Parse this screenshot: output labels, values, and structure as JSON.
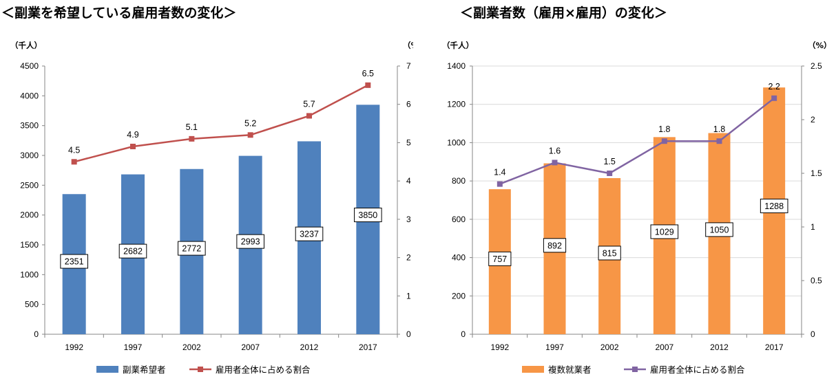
{
  "charts": [
    {
      "title": "＜副業を希望している雇用者数の変化＞",
      "chart_data": {
        "type": "bar",
        "categories": [
          "1992",
          "1997",
          "2002",
          "2007",
          "2012",
          "2017"
        ],
        "y_left_label": "（千人）",
        "y_right_label": "（%）",
        "ylim_left": [
          0,
          4500
        ],
        "yticks_left": [
          0,
          500,
          1000,
          1500,
          2000,
          2500,
          3000,
          3500,
          4000,
          4500
        ],
        "ylim_right": [
          0,
          7
        ],
        "yticks_right": [
          0,
          1,
          2,
          3,
          4,
          5,
          6,
          7
        ],
        "series": [
          {
            "name": "副業希望者",
            "kind": "bar",
            "axis": "left",
            "color": "#4f81bd",
            "values": [
              2351,
              2682,
              2772,
              2993,
              3237,
              3850
            ]
          },
          {
            "name": "雇用者全体に占める割合",
            "kind": "line",
            "axis": "right",
            "color": "#c0504d",
            "values": [
              4.5,
              4.9,
              5.1,
              5.2,
              5.7,
              6.5
            ]
          }
        ],
        "legend_position": "bottom",
        "grid": false
      }
    },
    {
      "title": "＜副業者数（雇用×雇用）の変化＞",
      "chart_data": {
        "type": "bar",
        "categories": [
          "1992",
          "1997",
          "2002",
          "2007",
          "2012",
          "2017"
        ],
        "y_left_label": "（千人）",
        "y_right_label": "（%）",
        "ylim_left": [
          0,
          1400
        ],
        "yticks_left": [
          0,
          200,
          400,
          600,
          800,
          1000,
          1200,
          1400
        ],
        "ylim_right": [
          0,
          2.5
        ],
        "yticks_right": [
          0,
          0.5,
          1,
          1.5,
          2,
          2.5
        ],
        "series": [
          {
            "name": "複数就業者",
            "kind": "bar",
            "axis": "left",
            "color": "#f79646",
            "values": [
              757,
              892,
              815,
              1029,
              1050,
              1288
            ]
          },
          {
            "name": "雇用者全体に占める割合",
            "kind": "line",
            "axis": "right",
            "color": "#8064a2",
            "values": [
              1.4,
              1.6,
              1.5,
              1.8,
              1.8,
              2.2
            ]
          }
        ],
        "legend_position": "bottom",
        "grid": true
      }
    }
  ]
}
